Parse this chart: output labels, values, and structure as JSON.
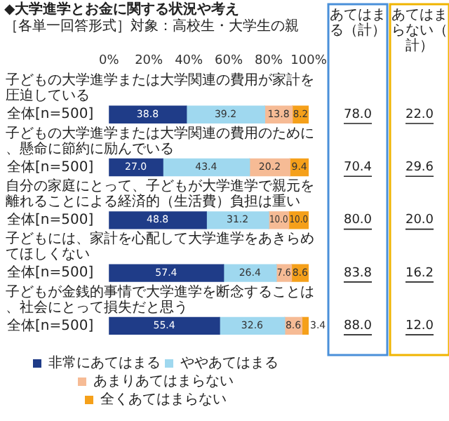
{
  "chart_data": {
    "type": "bar",
    "orientation": "horizontal",
    "stacked": true,
    "title": "◆大学進学とお金に関する状況や考え",
    "subtitle": "［各単一回答形式］対象：高校生・大学生の親",
    "categories": [
      "全体[n=500]",
      "全体[n=500]",
      "全体[n=500]",
      "全体[n=500]",
      "全体[n=500]"
    ],
    "series": [
      {
        "name": "非常にあてはまる",
        "color": "#1f3c88",
        "values": [
          38.8,
          27.0,
          48.8,
          57.4,
          55.4
        ],
        "value_labels": [
          "38.8",
          "27.0",
          "48.8",
          "57.4",
          "55.4"
        ]
      },
      {
        "name": "ややあてはまる",
        "color": "#9fd8ef",
        "values": [
          39.2,
          43.4,
          31.2,
          26.4,
          32.6
        ],
        "value_labels": [
          "39.2",
          "43.4",
          "31.2",
          "26.4",
          "32.6"
        ]
      },
      {
        "name": "あまりあてはまらない",
        "color": "#f6bb95",
        "values": [
          13.8,
          20.2,
          10.0,
          7.6,
          8.6
        ],
        "value_labels": [
          "13.8",
          "20.2",
          "10.0",
          "7.6",
          "8.6"
        ]
      },
      {
        "name": "全くあてはまらない",
        "color": "#f5a01a",
        "values": [
          8.2,
          9.4,
          10.0,
          8.6,
          3.4
        ],
        "value_labels": [
          "8.2",
          "9.4",
          "10.0",
          "8.6",
          "3.4"
        ]
      }
    ],
    "xlim": [
      0,
      100
    ],
    "xticks": [
      {
        "value": 0,
        "label": "0%"
      },
      {
        "value": 20,
        "label": "20%"
      },
      {
        "value": 40,
        "label": "40%"
      },
      {
        "value": 60,
        "label": "60%"
      },
      {
        "value": 80,
        "label": "80%"
      },
      {
        "value": 100,
        "label": "100%"
      }
    ],
    "grid": false,
    "legend": "bottom",
    "annotations": [
      "子どもの大学進学または大学関連の費用が家計を圧迫している",
      "子どもの大学進学または大学関連の費用のために、懸命に節約に励んでいる",
      "自分の家庭にとって、子どもが大学進学で親元を離れることによる経済的（生活費）負担は重い",
      "子どもには、家計を心配して大学進学をあきらめてほしくない",
      "子どもが金銭的事情で大学進学を断念することは、社会にとって損失だと思う",
      "あてはまる（計）",
      "78.0",
      "70.4",
      "80.0",
      "83.8",
      "88.0",
      "あてはまらない（計）",
      "22.0",
      "29.6",
      "20.0",
      "16.2",
      "12.0"
    ]
  }
}
